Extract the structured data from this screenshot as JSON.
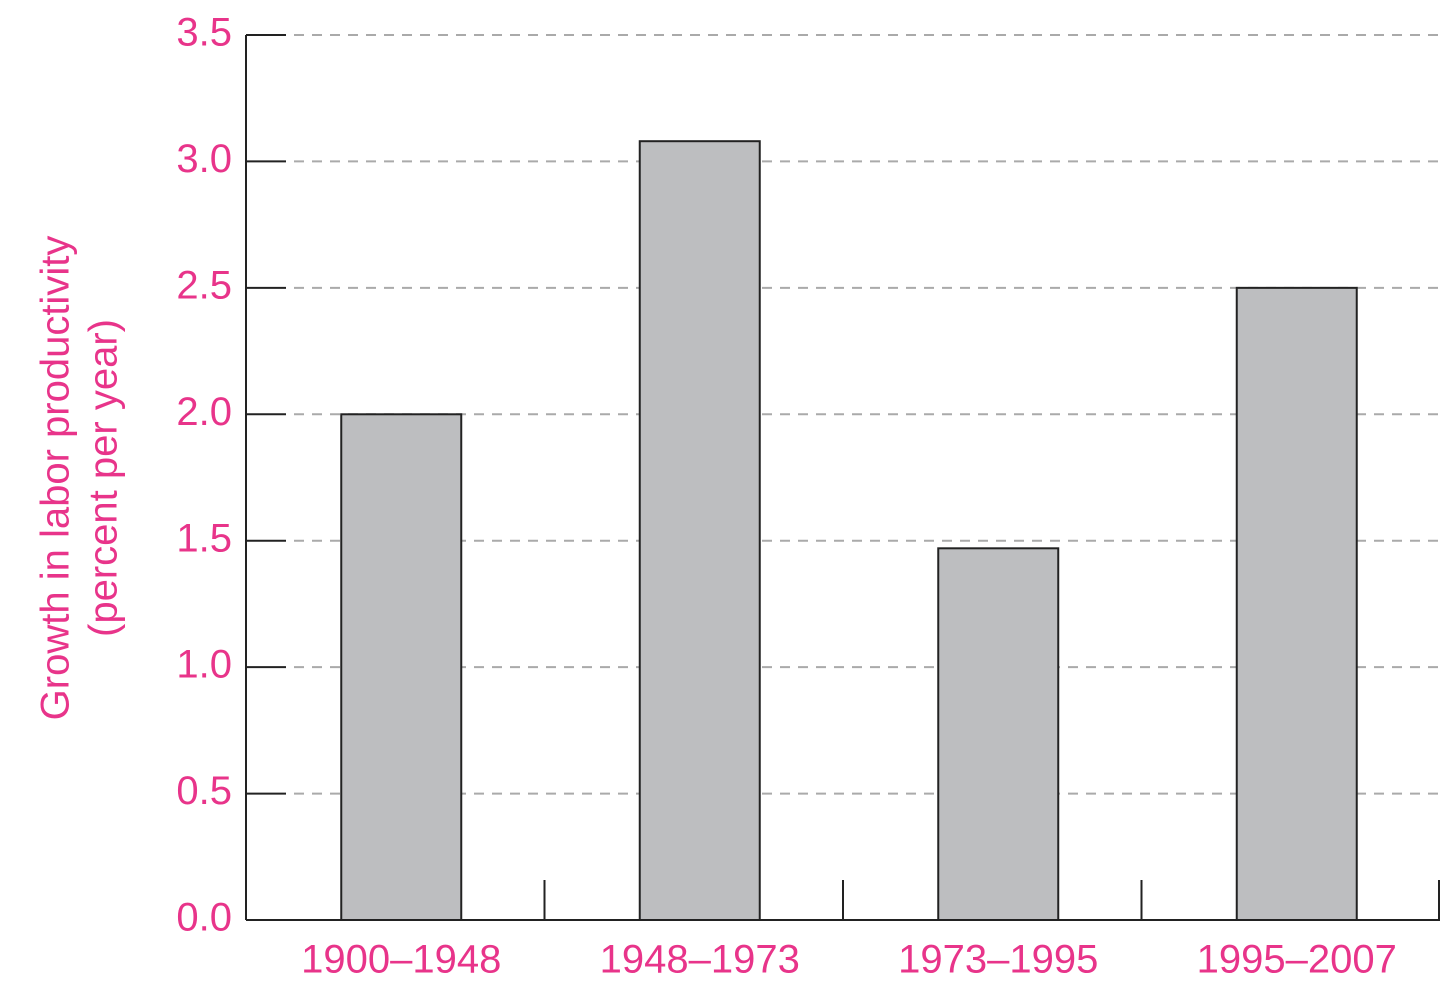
{
  "chart_data": {
    "type": "bar",
    "ylabel": [
      "Growth in labor productivity",
      "(percent per year)"
    ],
    "categories": [
      "1900–1948",
      "1948–1973",
      "1973–1995",
      "1995–2007"
    ],
    "values": [
      2.0,
      3.08,
      1.47,
      2.5
    ],
    "color": "#bdbec0",
    "ylim": [
      0,
      3.5
    ],
    "yticks": [
      {
        "value": 0,
        "label": "0.0"
      },
      0.5,
      {
        "value": 1,
        "label": "1.0"
      },
      1.5,
      {
        "value": 2,
        "label": "2.0"
      },
      2.5,
      {
        "value": 3,
        "label": "3.0"
      },
      3.5
    ],
    "grid": true
  }
}
